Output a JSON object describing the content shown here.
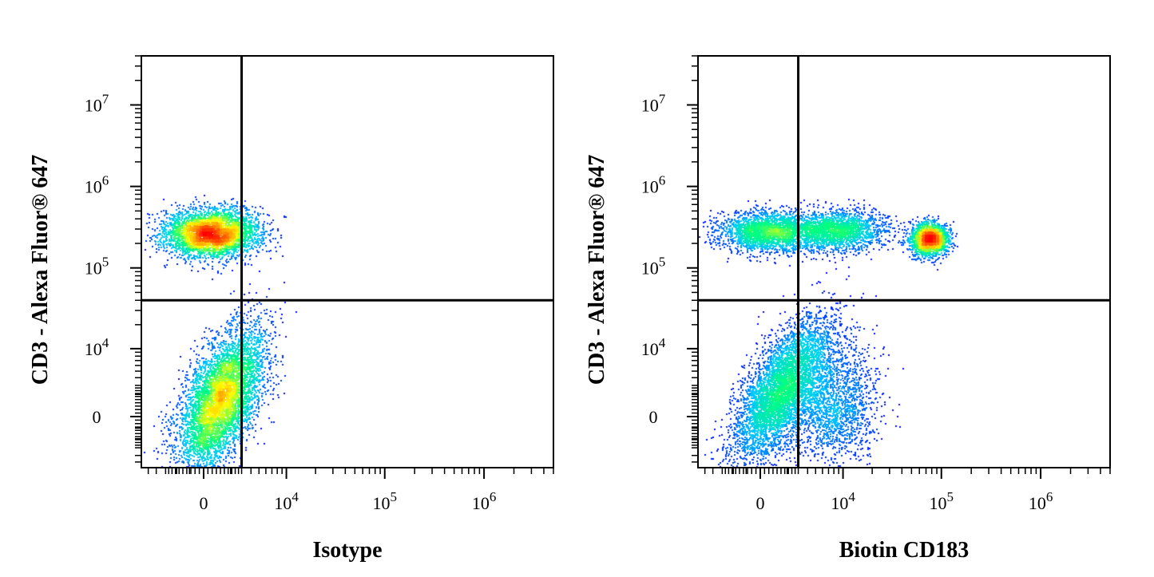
{
  "chart_data": [
    {
      "type": "scatter",
      "subtype": "flow-cytometry-density-dot-plot",
      "xlabel": "Isotype",
      "ylabel": "CD3 - Alexa Fluor® 647",
      "x_scale": "biexponential",
      "y_scale": "biexponential",
      "x_ticks": [
        {
          "value": 0,
          "label": "0",
          "exp": ""
        },
        {
          "value": 10000,
          "label": "10",
          "exp": "4"
        },
        {
          "value": 100000,
          "label": "10",
          "exp": "5"
        },
        {
          "value": 1000000,
          "label": "10",
          "exp": "6"
        }
      ],
      "y_ticks": [
        {
          "value": 0,
          "label": "0",
          "exp": ""
        },
        {
          "value": 10000,
          "label": "10",
          "exp": "4"
        },
        {
          "value": 100000,
          "label": "10",
          "exp": "5"
        },
        {
          "value": 1000000,
          "label": "10",
          "exp": "6"
        },
        {
          "value": 10000000,
          "label": "10",
          "exp": "7"
        }
      ],
      "xlim": [
        -6000,
        5000000
      ],
      "ylim": [
        -6000,
        40000000
      ],
      "quadrant_gate": {
        "x": 3000,
        "y": 40000
      },
      "populations": [
        {
          "cx": 500,
          "cy": 270000,
          "sx": 0.55,
          "sy": 0.33,
          "n": 4000,
          "peak": 1.0
        },
        {
          "cx": 1200,
          "cy": 1500,
          "sx": 0.5,
          "sy": 1.0,
          "rho": 0.55,
          "n": 5500,
          "peak": 0.55
        }
      ],
      "colormap": [
        "#0000ff",
        "#00c8ff",
        "#00ff80",
        "#ffff00",
        "#ff8000",
        "#ff0000"
      ],
      "grid": false,
      "legend": "none"
    },
    {
      "type": "scatter",
      "subtype": "flow-cytometry-density-dot-plot",
      "xlabel": "Biotin CD183",
      "ylabel": "CD3 - Alexa Fluor® 647",
      "x_scale": "biexponential",
      "y_scale": "biexponential",
      "x_ticks": [
        {
          "value": 0,
          "label": "0",
          "exp": ""
        },
        {
          "value": 10000,
          "label": "10",
          "exp": "4"
        },
        {
          "value": 100000,
          "label": "10",
          "exp": "5"
        },
        {
          "value": 1000000,
          "label": "10",
          "exp": "6"
        }
      ],
      "y_ticks": [
        {
          "value": 0,
          "label": "0",
          "exp": ""
        },
        {
          "value": 10000,
          "label": "10",
          "exp": "4"
        },
        {
          "value": 100000,
          "label": "10",
          "exp": "5"
        },
        {
          "value": 1000000,
          "label": "10",
          "exp": "6"
        },
        {
          "value": 10000000,
          "label": "10",
          "exp": "7"
        }
      ],
      "xlim": [
        -6000,
        5000000
      ],
      "ylim": [
        -6000,
        40000000
      ],
      "quadrant_gate": {
        "x": 3000,
        "y": 40000
      },
      "populations": [
        {
          "cx": 600,
          "cy": 280000,
          "sx": 0.6,
          "sy": 0.28,
          "n": 2600,
          "peak": 0.6
        },
        {
          "cx": 9000,
          "cy": 290000,
          "sx": 0.55,
          "sy": 0.28,
          "n": 2000,
          "peak": 0.45
        },
        {
          "cx": 75000,
          "cy": 230000,
          "sx": 0.22,
          "sy": 0.22,
          "n": 2200,
          "peak": 1.0
        },
        {
          "cx": 1500,
          "cy": 2500,
          "sx": 0.55,
          "sy": 1.0,
          "rho": 0.65,
          "n": 5000,
          "peak": 0.7
        },
        {
          "cx": 8000,
          "cy": 1200,
          "sx": 0.5,
          "sy": 0.9,
          "n": 1800,
          "peak": 0.3
        }
      ],
      "colormap": [
        "#0000ff",
        "#00c8ff",
        "#00ff80",
        "#ffff00",
        "#ff8000",
        "#ff0000"
      ],
      "grid": false,
      "legend": "none"
    }
  ]
}
